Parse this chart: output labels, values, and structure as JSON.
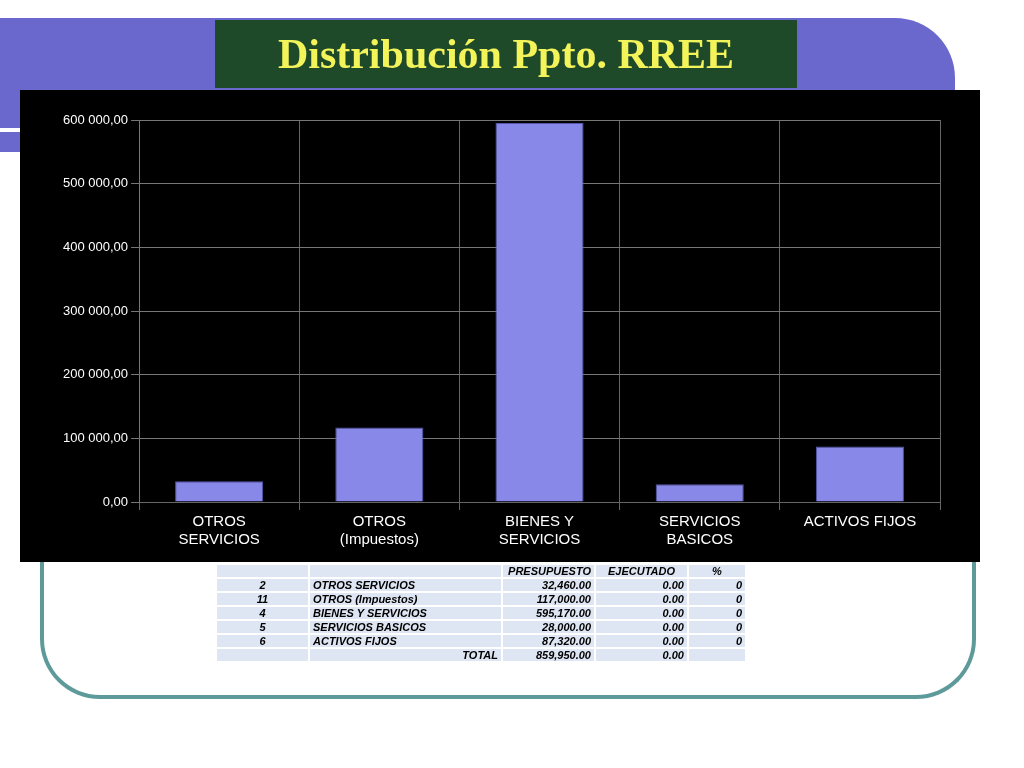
{
  "chart_data": {
    "type": "bar",
    "title": "Distribución Ppto. RREE",
    "categories": [
      "OTROS SERVICIOS",
      "OTROS (Impuestos)",
      "BIENES Y SERVICIOS",
      "SERVICIOS BASICOS",
      "ACTIVOS FIJOS"
    ],
    "series": [
      {
        "color": "#8888e8",
        "values": [
          32460,
          117000,
          595170,
          28000,
          87320
        ]
      }
    ],
    "ylim": [
      0,
      600000
    ],
    "yticks": [
      {
        "value": 0,
        "label": "0,00"
      },
      {
        "value": 100000,
        "label": "100 000,00"
      },
      {
        "value": 200000,
        "label": "200 000,00"
      },
      {
        "value": 300000,
        "label": "300 000,00"
      },
      {
        "value": 400000,
        "label": "400 000,00"
      },
      {
        "value": 500000,
        "label": "500 000,00"
      },
      {
        "value": 600000,
        "label": "600 000,00"
      }
    ],
    "grid": true,
    "legend": false,
    "annotations": [
      "PRESUPUESTO",
      "EJECUTADO",
      "%",
      "2",
      "11",
      "4",
      "5",
      "6",
      "32,460.00",
      "117,000.00",
      "595,170.00",
      "28,000.00",
      "87,320.00",
      "0.00",
      "0.00",
      "0.00",
      "0.00",
      "0.00",
      "0",
      "0",
      "0",
      "0",
      "0",
      "TOTAL",
      "859,950.00",
      "0.00"
    ]
  }
}
